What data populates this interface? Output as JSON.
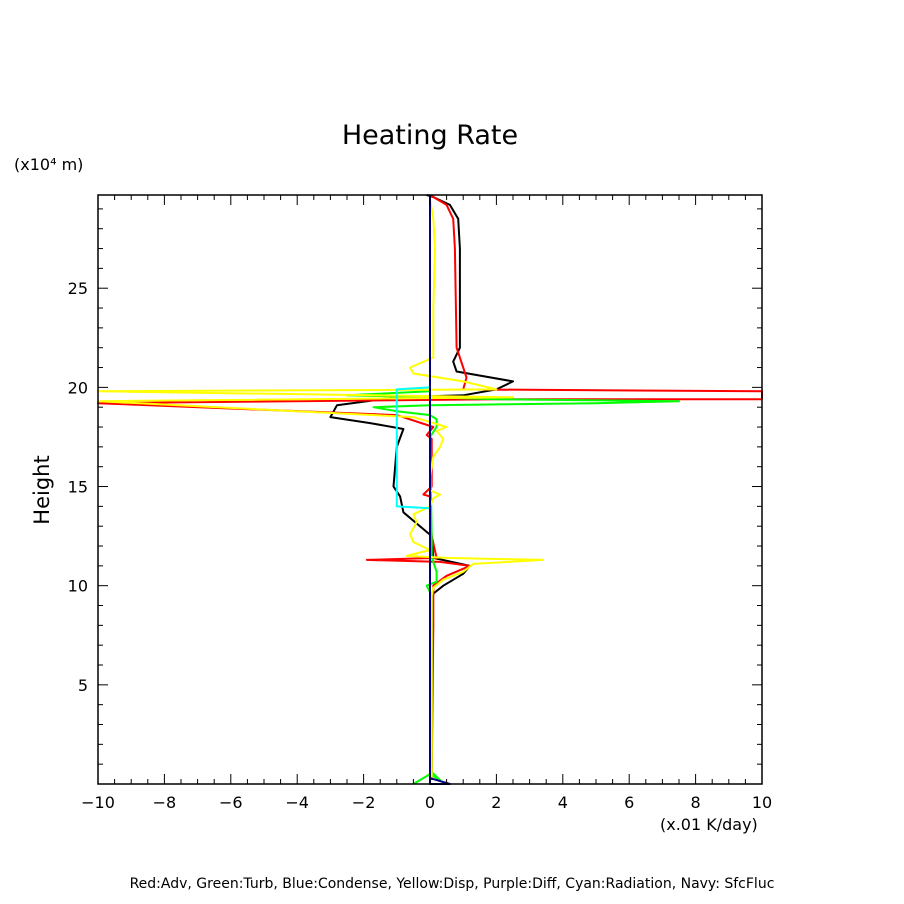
{
  "chart_data": {
    "type": "line",
    "title": "Heating Rate",
    "xlabel": "",
    "ylabel": "Height",
    "x_unit_label": "(x.01 K/day)",
    "y_unit_label": "(x10⁴ m)",
    "xlim": [
      -10,
      10
    ],
    "ylim": [
      0,
      29.7
    ],
    "x_ticks": [
      -10,
      -8,
      -6,
      -4,
      -2,
      0,
      2,
      4,
      6,
      8,
      10
    ],
    "x_tick_labels": [
      "−10",
      "−8",
      "−6",
      "−4",
      "−2",
      "0",
      "2",
      "4",
      "6",
      "8",
      "10"
    ],
    "y_ticks": [
      5,
      10,
      15,
      20,
      25
    ],
    "y_tick_labels": [
      "5",
      "10",
      "15",
      "20",
      "25"
    ],
    "grid": false,
    "legend_note": "Red:Adv, Green:Turb, Blue:Condense, Yellow:Disp, Purple:Diff, Cyan:Radiation, Navy: SfcFluc",
    "series": [
      {
        "color": "#000000",
        "points": [
          [
            0.05,
            0.3
          ],
          [
            0.05,
            9
          ],
          [
            0.1,
            9.6
          ],
          [
            0.4,
            10
          ],
          [
            1.0,
            10.6
          ],
          [
            1.2,
            11.0
          ],
          [
            0.1,
            11.4
          ],
          [
            0.05,
            12.5
          ],
          [
            -0.8,
            13.7
          ],
          [
            -0.9,
            14.5
          ],
          [
            -1.1,
            15
          ],
          [
            -1.0,
            17
          ],
          [
            -0.8,
            17.9
          ],
          [
            -1.8,
            18.2
          ],
          [
            -3.0,
            18.5
          ],
          [
            -2.8,
            19.1
          ],
          [
            -1.0,
            19.5
          ],
          [
            1.0,
            19.6
          ],
          [
            2.0,
            19.9
          ],
          [
            2.5,
            20.3
          ],
          [
            0.8,
            20.8
          ],
          [
            0.7,
            21.3
          ],
          [
            0.9,
            22
          ],
          [
            0.9,
            27
          ],
          [
            0.85,
            28.5
          ],
          [
            0.6,
            29.2
          ],
          [
            0.1,
            29.6
          ],
          [
            -0.1,
            29.7
          ]
        ]
      },
      {
        "color": "#ff0000",
        "points": [
          [
            0.05,
            0.2
          ],
          [
            0.1,
            8
          ],
          [
            0.1,
            10.0
          ],
          [
            0.5,
            10.5
          ],
          [
            1.2,
            11.0
          ],
          [
            0.3,
            11.2
          ],
          [
            -1.9,
            11.3
          ],
          [
            0.2,
            11.4
          ],
          [
            0.05,
            12.5
          ],
          [
            0.0,
            14.5
          ],
          [
            -0.2,
            14.6
          ],
          [
            0.05,
            15
          ],
          [
            0.05,
            17.4
          ],
          [
            -0.1,
            17.6
          ],
          [
            0.1,
            18.0
          ],
          [
            -1.0,
            18.6
          ],
          [
            -10,
            19.2
          ],
          [
            2.0,
            19.4
          ],
          [
            10,
            19.4
          ],
          [
            10,
            19.8
          ],
          [
            1.0,
            19.9
          ],
          [
            1.1,
            20.5
          ],
          [
            1.0,
            21.0
          ],
          [
            0.8,
            22
          ],
          [
            0.75,
            27
          ],
          [
            0.7,
            28.5
          ],
          [
            0.5,
            29.2
          ],
          [
            0.1,
            29.6
          ],
          [
            0.0,
            29.7
          ]
        ]
      },
      {
        "color": "#00ff00",
        "points": [
          [
            -0.5,
            0.0
          ],
          [
            0.0,
            0.5
          ],
          [
            0.3,
            0.2
          ],
          [
            0.05,
            0.6
          ],
          [
            0.05,
            9.5
          ],
          [
            -0.1,
            10.0
          ],
          [
            0.2,
            10.2
          ],
          [
            0.2,
            10.7
          ],
          [
            0.1,
            11.2
          ],
          [
            0.05,
            11.5
          ],
          [
            0.05,
            12.5
          ],
          [
            0.0,
            17.5
          ],
          [
            0.2,
            18.0
          ],
          [
            0.2,
            18.4
          ],
          [
            0.0,
            18.6
          ],
          [
            -1.0,
            18.8
          ],
          [
            -1.7,
            19.0
          ],
          [
            0.0,
            19.1
          ],
          [
            5.0,
            19.2
          ],
          [
            7.5,
            19.3
          ],
          [
            2.0,
            19.4
          ],
          [
            0.0,
            19.5
          ],
          [
            -2.5,
            19.6
          ],
          [
            0.0,
            19.8
          ]
        ]
      },
      {
        "color": "#0000ff",
        "points": [
          [
            0.0,
            0.0
          ],
          [
            0.0,
            29.7
          ]
        ]
      },
      {
        "color": "#ffff00",
        "points": [
          [
            0.05,
            0.3
          ],
          [
            0.05,
            9.5
          ],
          [
            0.1,
            9.9
          ],
          [
            0.4,
            10.3
          ],
          [
            1.0,
            10.7
          ],
          [
            1.3,
            11.1
          ],
          [
            3.4,
            11.3
          ],
          [
            0.5,
            11.4
          ],
          [
            -0.7,
            11.5
          ],
          [
            0.0,
            11.8
          ],
          [
            -0.5,
            12.2
          ],
          [
            -0.6,
            12.6
          ],
          [
            -0.4,
            13.2
          ],
          [
            -0.5,
            13.6
          ],
          [
            0.0,
            14.0
          ],
          [
            0.1,
            14.4
          ],
          [
            0.3,
            14.6
          ],
          [
            0.0,
            14.8
          ],
          [
            0.0,
            15.5
          ],
          [
            0.1,
            16.5
          ],
          [
            0.3,
            17.0
          ],
          [
            0.4,
            17.4
          ],
          [
            0.2,
            17.8
          ],
          [
            0.5,
            18.0
          ],
          [
            -0.5,
            18.5
          ],
          [
            -10,
            19.3
          ],
          [
            2.5,
            19.5
          ],
          [
            -10,
            19.8
          ],
          [
            2.0,
            19.9
          ],
          [
            1.0,
            20.3
          ],
          [
            -0.5,
            20.7
          ],
          [
            -0.6,
            21.0
          ],
          [
            0.1,
            21.5
          ],
          [
            0.1,
            24
          ],
          [
            0.15,
            27
          ],
          [
            0.1,
            28.5
          ],
          [
            0.0,
            29.5
          ]
        ]
      },
      {
        "color": "#800080",
        "points": []
      },
      {
        "color": "#00ffff",
        "points": [
          [
            0.0,
            13.9
          ],
          [
            -1.0,
            14.0
          ],
          [
            -1.0,
            19.9
          ],
          [
            0.0,
            20.0
          ]
        ]
      },
      {
        "color": "#000080",
        "points": [
          [
            0.0,
            0.3
          ],
          [
            0.6,
            0.0
          ],
          [
            0.0,
            0.0
          ],
          [
            0.0,
            29.7
          ]
        ]
      }
    ]
  }
}
